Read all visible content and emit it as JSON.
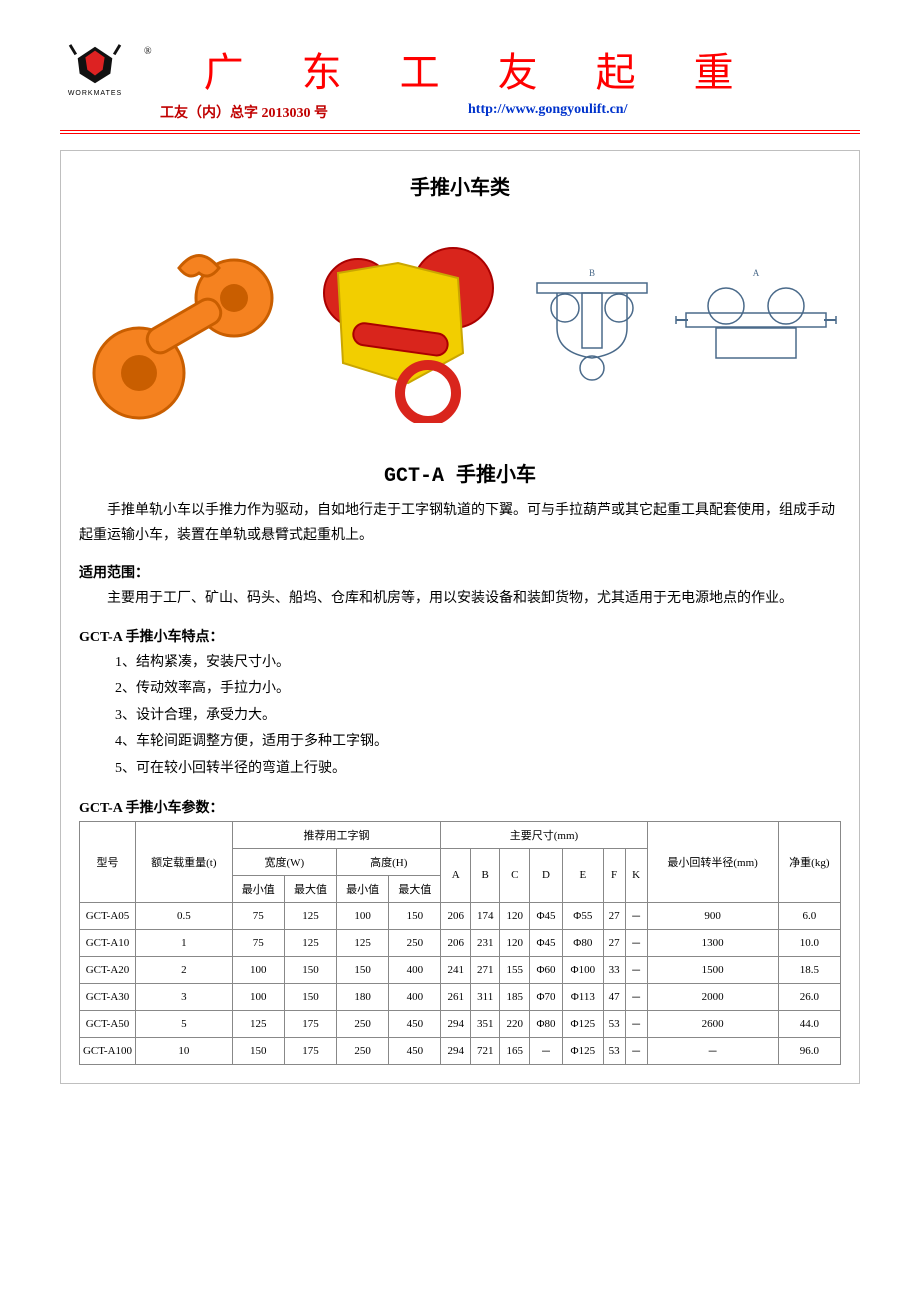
{
  "header": {
    "logo_label": "WORKMATES",
    "reg_mark": "®",
    "company_name": "广 东 工 友 起 重",
    "doc_number": "工友（内）总字 2013030 号",
    "url": "http://www.gongyoulift.cn/"
  },
  "page_category": "手推小车类",
  "product_title": "GCT-A 手推小车",
  "intro_paragraph": "手推单轨小车以手推力作为驱动，自如地行走于工字钢轨道的下翼。可与手拉葫芦或其它起重工具配套使用，组成手动起重运输小车，装置在单轨或悬臂式起重机上。",
  "scope_label": "适用范围：",
  "scope_text": "主要用于工厂、矿山、码头、船坞、仓库和机房等，用以安装设备和装卸货物，尤其适用于无电源地点的作业。",
  "features_label": "GCT-A 手推小车特点：",
  "features": [
    "1、结构紧凑，安装尺寸小。",
    "2、传动效率高，手拉力小。",
    "3、设计合理，承受力大。",
    "4、车轮间距调整方便，适用于多种工字钢。",
    "5、可在较小回转半径的弯道上行驶。"
  ],
  "params_label": "GCT-A 手推小车参数：",
  "table": {
    "head": {
      "model": "型号",
      "capacity": "额定载重量(t)",
      "ibeam_group": "推荐用工字钢",
      "width_group": "宽度(W)",
      "height_group": "高度(H)",
      "min": "最小值",
      "max": "最大值",
      "dims_group": "主要尺寸(mm)",
      "A": "A",
      "B": "B",
      "C": "C",
      "D": "D",
      "E": "E",
      "F": "F",
      "K": "K",
      "turn_radius": "最小回转半径(mm)",
      "net_weight": "净重(kg)"
    },
    "rows": [
      {
        "model": "GCT-A05",
        "cap": "0.5",
        "wmin": "75",
        "wmax": "125",
        "hmin": "100",
        "hmax": "150",
        "A": "206",
        "B": "174",
        "C": "120",
        "D": "Φ45",
        "E": "Φ55",
        "F": "27",
        "K": "－",
        "r": "900",
        "w": "6.0"
      },
      {
        "model": "GCT-A10",
        "cap": "1",
        "wmin": "75",
        "wmax": "125",
        "hmin": "125",
        "hmax": "250",
        "A": "206",
        "B": "231",
        "C": "120",
        "D": "Φ45",
        "E": "Φ80",
        "F": "27",
        "K": "－",
        "r": "1300",
        "w": "10.0"
      },
      {
        "model": "GCT-A20",
        "cap": "2",
        "wmin": "100",
        "wmax": "150",
        "hmin": "150",
        "hmax": "400",
        "A": "241",
        "B": "271",
        "C": "155",
        "D": "Φ60",
        "E": "Φ100",
        "F": "33",
        "K": "－",
        "r": "1500",
        "w": "18.5"
      },
      {
        "model": "GCT-A30",
        "cap": "3",
        "wmin": "100",
        "wmax": "150",
        "hmin": "180",
        "hmax": "400",
        "A": "261",
        "B": "311",
        "C": "185",
        "D": "Φ70",
        "E": "Φ113",
        "F": "47",
        "K": "－",
        "r": "2000",
        "w": "26.0"
      },
      {
        "model": "GCT-A50",
        "cap": "5",
        "wmin": "125",
        "wmax": "175",
        "hmin": "250",
        "hmax": "450",
        "A": "294",
        "B": "351",
        "C": "220",
        "D": "Φ80",
        "E": "Φ125",
        "F": "53",
        "K": "－",
        "r": "2600",
        "w": "44.0"
      },
      {
        "model": "GCT-A100",
        "cap": "10",
        "wmin": "150",
        "wmax": "175",
        "hmin": "250",
        "hmax": "450",
        "A": "294",
        "B": "721",
        "C": "165",
        "D": "－",
        "E": "Φ125",
        "F": "53",
        "K": "－",
        "r": "－",
        "w": "96.0"
      }
    ]
  },
  "images": {
    "orange_fill": "#f58220",
    "orange_dark": "#c95e00",
    "yellow_fill": "#f2ce00",
    "red_fill": "#d9251c",
    "diagram_stroke": "#4a6a8a"
  }
}
